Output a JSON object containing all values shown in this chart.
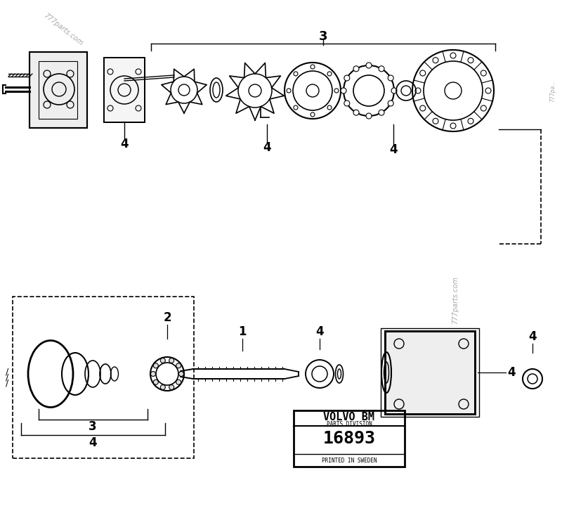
{
  "background_color": "#ffffff",
  "line_color": "#000000",
  "part_number": "16893",
  "brand_line1": "VOLVO BM",
  "brand_line2": "PARTS DIVISION",
  "brand_line3": "PRINTED IN SWEDEN"
}
